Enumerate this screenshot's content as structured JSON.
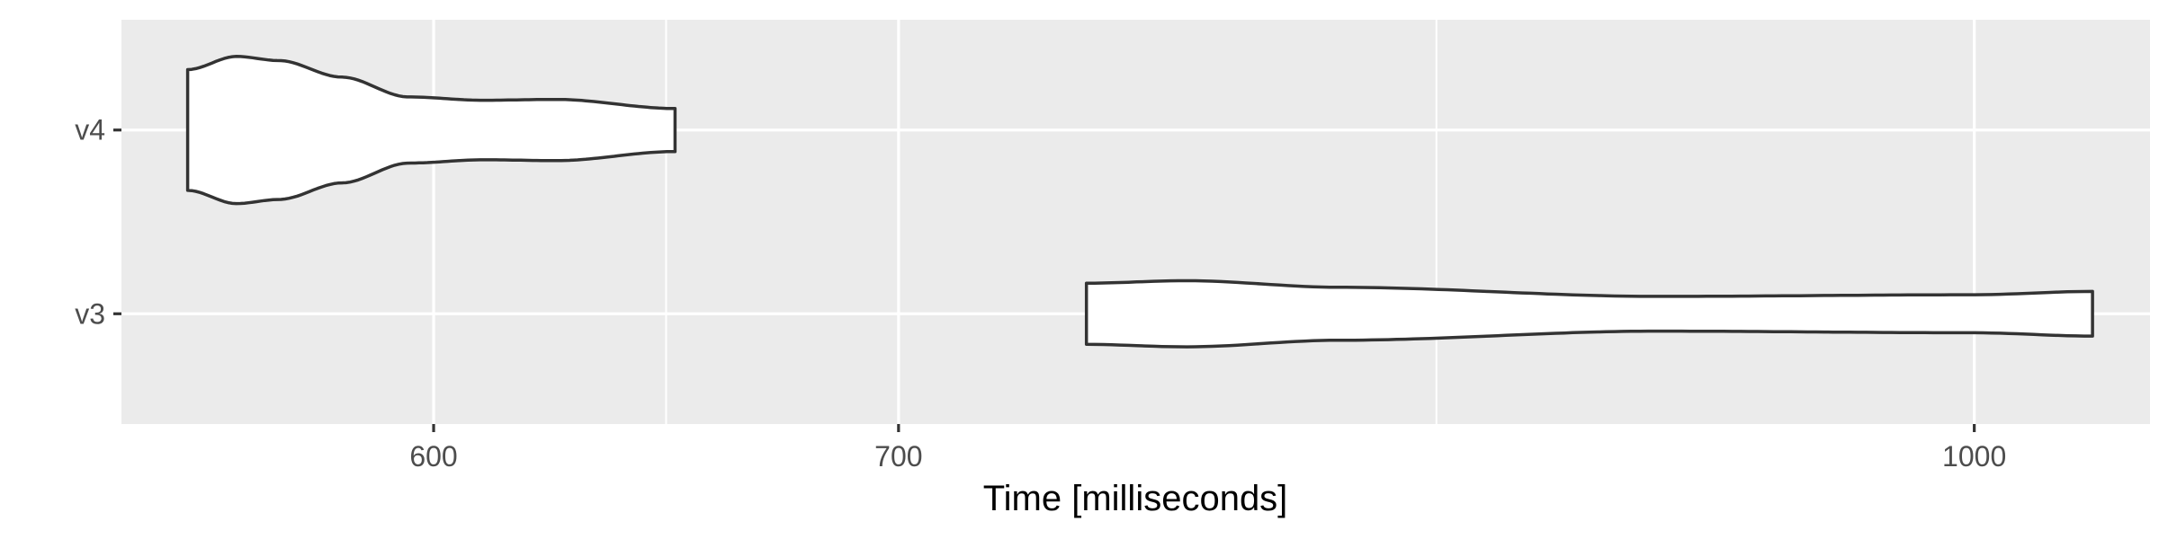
{
  "chart_data": {
    "type": "violin",
    "title": "",
    "xlabel": "Time [milliseconds]",
    "ylabel": "",
    "x_scale": "log10",
    "xlim": [
      541,
      1060
    ],
    "x_ticks": [
      600,
      700,
      1000
    ],
    "x_tick_labels": [
      "600",
      "700",
      "1000"
    ],
    "categories": [
      "v3",
      "v4"
    ],
    "grid": true,
    "panel_background": "#ebebeb",
    "fill_color": "#ffffff",
    "outline_color": "#333333",
    "series": [
      {
        "category": "v4",
        "range": [
          553,
          650
        ],
        "density_profile": [
          {
            "x": 553,
            "width": 0.73
          },
          {
            "x": 562,
            "width": 0.89
          },
          {
            "x": 570,
            "width": 0.84
          },
          {
            "x": 582,
            "width": 0.64
          },
          {
            "x": 595,
            "width": 0.4
          },
          {
            "x": 610,
            "width": 0.36
          },
          {
            "x": 625,
            "width": 0.37
          },
          {
            "x": 650,
            "width": 0.26
          }
        ]
      },
      {
        "category": "v3",
        "range": [
          745,
          1040
        ],
        "density_profile": [
          {
            "x": 745,
            "width": 0.37
          },
          {
            "x": 770,
            "width": 0.4
          },
          {
            "x": 810,
            "width": 0.32
          },
          {
            "x": 900,
            "width": 0.21
          },
          {
            "x": 1000,
            "width": 0.23
          },
          {
            "x": 1040,
            "width": 0.27
          }
        ]
      }
    ]
  }
}
